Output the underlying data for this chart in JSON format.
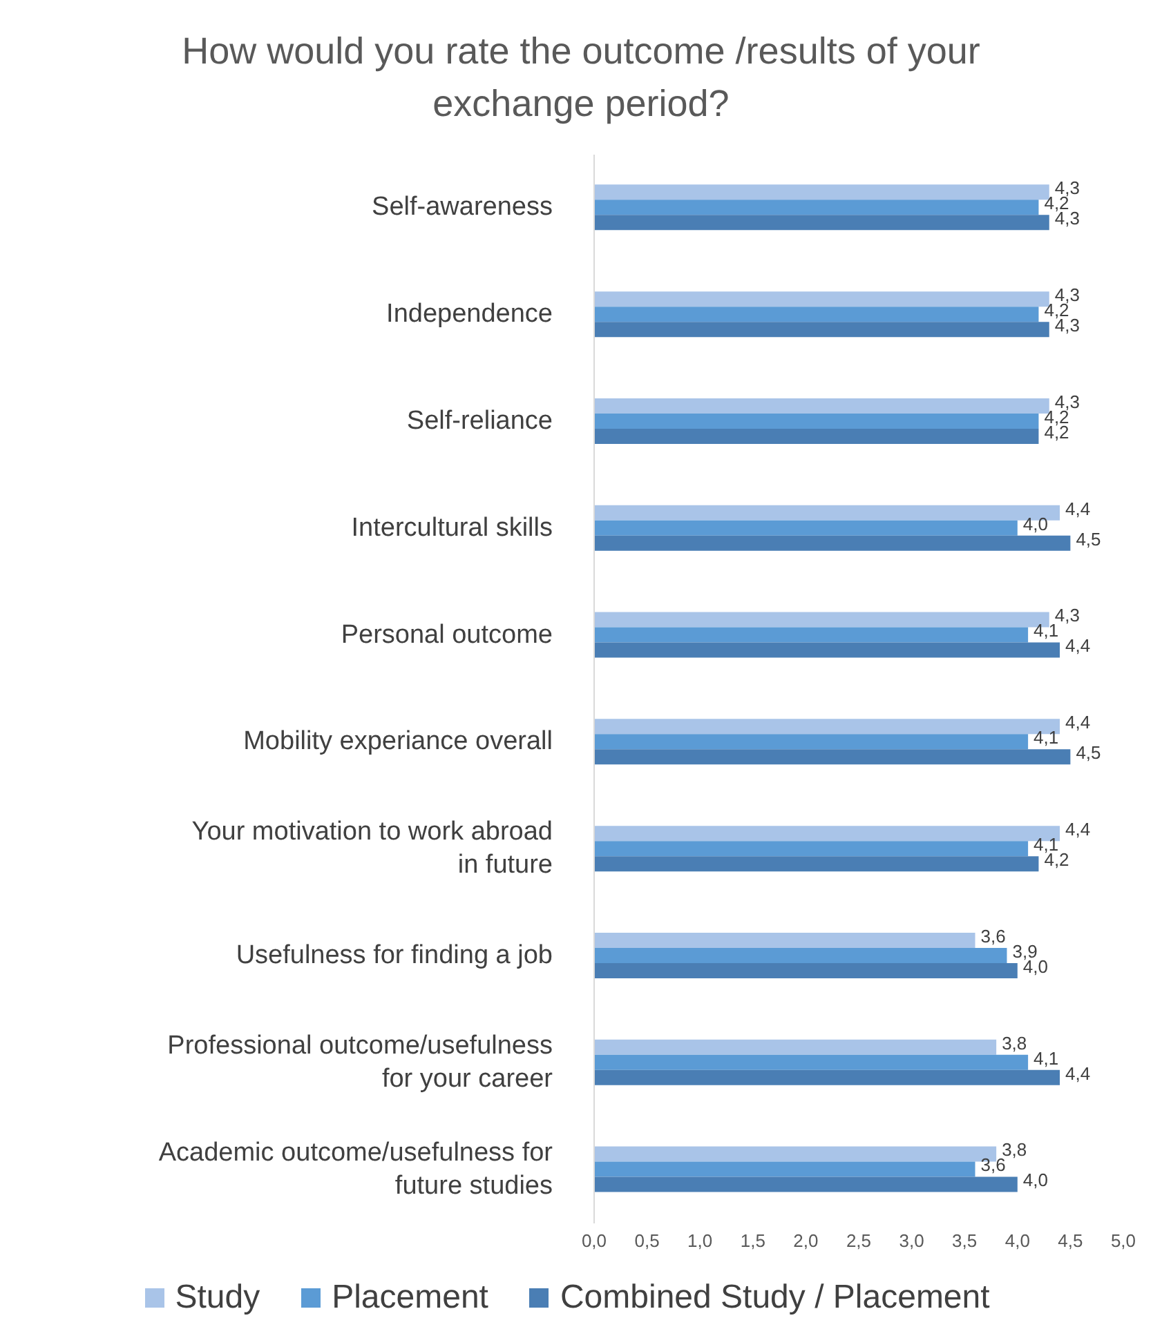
{
  "chart_data": {
    "type": "bar",
    "orientation": "horizontal",
    "title": "How would you rate the outcome /results of your exchange period?",
    "categories": [
      "Self-awareness",
      "Independence",
      "Self-reliance",
      "Intercultural skills",
      "Personal outcome",
      "Mobility experiance overall",
      "Your motivation to work abroad in future",
      "Usefulness for finding a job",
      "Professional outcome/usefulness for your career",
      "Academic outcome/usefulness for future studies"
    ],
    "series": [
      {
        "name": "Study",
        "color": "#a9c4e8",
        "values": [
          4.3,
          4.3,
          4.3,
          4.4,
          4.3,
          4.4,
          4.4,
          3.6,
          3.8,
          3.8
        ],
        "value_labels": [
          "4,3",
          "4,3",
          "4,3",
          "4,4",
          "4,3",
          "4,4",
          "4,4",
          "3,6",
          "3,8",
          "3,8"
        ]
      },
      {
        "name": "Placement",
        "color": "#5b9bd5",
        "values": [
          4.2,
          4.2,
          4.2,
          4.0,
          4.1,
          4.1,
          4.1,
          3.9,
          4.1,
          3.6
        ],
        "value_labels": [
          "4,2",
          "4,2",
          "4,2",
          "4,0",
          "4,1",
          "4,1",
          "4,1",
          "3,9",
          "4,1",
          "3,6"
        ]
      },
      {
        "name": "Combined Study / Placement",
        "color": "#4a7eb4",
        "values": [
          4.3,
          4.3,
          4.2,
          4.5,
          4.4,
          4.5,
          4.2,
          4.0,
          4.4,
          4.0
        ],
        "value_labels": [
          "4,3",
          "4,3",
          "4,2",
          "4,5",
          "4,4",
          "4,5",
          "4,2",
          "4,0",
          "4,4",
          "4,0"
        ]
      }
    ],
    "xlim": [
      0,
      5
    ],
    "xticks": [
      {
        "value": 0,
        "label": "0,0"
      },
      {
        "value": 0.5,
        "label": "0,5"
      },
      {
        "value": 1,
        "label": "1,0"
      },
      {
        "value": 1.5,
        "label": "1,5"
      },
      {
        "value": 2,
        "label": "2,0"
      },
      {
        "value": 2.5,
        "label": "2,5"
      },
      {
        "value": 3,
        "label": "3,0"
      },
      {
        "value": 3.5,
        "label": "3,5"
      },
      {
        "value": 4,
        "label": "4,0"
      },
      {
        "value": 4.5,
        "label": "4,5"
      },
      {
        "value": 5,
        "label": "5,0"
      }
    ],
    "grid": false,
    "legend": "bottom"
  }
}
